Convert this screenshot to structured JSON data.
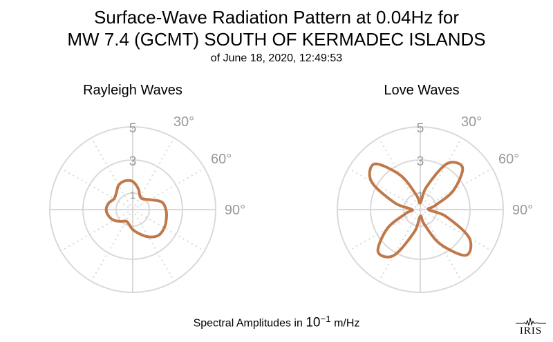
{
  "title": {
    "line1": "Surface-Wave Radiation Pattern at 0.04Hz for",
    "line2": "MW 7.4 (GCMT) SOUTH OF KERMADEC ISLANDS",
    "line3": "of June 18, 2020, 12:49:53"
  },
  "footer": {
    "prefix": "Spectral Amplitudes in ",
    "exponent_base": "10",
    "exponent": "−1",
    "unit": " m/Hz"
  },
  "logo": {
    "text": "IRIS"
  },
  "colors": {
    "pattern": "#c0784a",
    "grid": "#d9d9d9",
    "label": "#999999"
  },
  "chart_data": [
    {
      "type": "polar-line",
      "title": "Rayleigh Waves",
      "radial_ticks": [
        "1",
        "3",
        "5"
      ],
      "angle_ticks": [
        "30°",
        "60°",
        "90°"
      ],
      "rlim": [
        0,
        5
      ],
      "grid": true,
      "series": [
        {
          "theta_deg": [
            0,
            15,
            30,
            45,
            60,
            75,
            90,
            105,
            120,
            135,
            150,
            165,
            180,
            195,
            210,
            225,
            240,
            255,
            270,
            285,
            300,
            315,
            330,
            345
          ],
          "r": [
            1.7,
            1.3,
            0.9,
            0.9,
            1.2,
            1.8,
            2.0,
            2.1,
            2.2,
            2.2,
            1.9,
            1.5,
            1.2,
            0.9,
            0.8,
            1.0,
            1.3,
            1.5,
            1.6,
            1.5,
            1.3,
            1.4,
            1.7,
            1.8
          ]
        }
      ]
    },
    {
      "type": "polar-line",
      "title": "Love Waves",
      "radial_ticks": [
        "1",
        "3",
        "5"
      ],
      "angle_ticks": [
        "30°",
        "60°",
        "90°"
      ],
      "rlim": [
        0,
        5
      ],
      "grid": true,
      "series": [
        {
          "theta_deg": [
            0,
            15,
            30,
            45,
            60,
            75,
            90,
            105,
            120,
            135,
            150,
            165,
            180,
            195,
            210,
            225,
            240,
            255,
            270,
            285,
            300,
            315,
            330,
            345
          ],
          "r": [
            0.4,
            1.4,
            3.2,
            3.6,
            2.3,
            0.9,
            0.5,
            1.6,
            3.4,
            3.9,
            2.4,
            0.9,
            0.4,
            1.4,
            3.2,
            3.6,
            2.3,
            0.9,
            0.5,
            1.6,
            3.4,
            3.9,
            2.4,
            0.9
          ]
        }
      ]
    }
  ]
}
